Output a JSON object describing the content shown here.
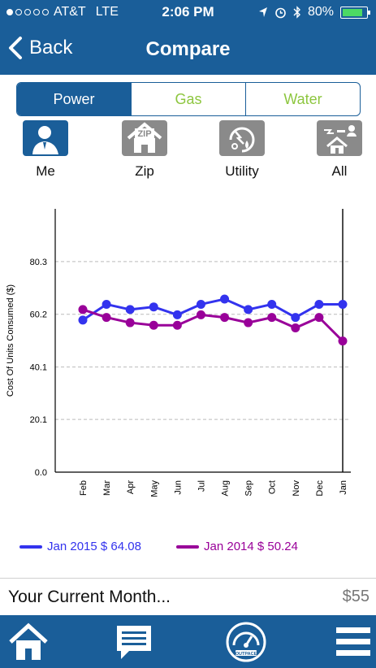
{
  "status_bar": {
    "carrier": "AT&T",
    "network": "LTE",
    "time": "2:06 PM",
    "battery": "80%",
    "signal_bars_on": 1,
    "battery_level": 0.8
  },
  "nav": {
    "back_label": "Back",
    "title": "Compare"
  },
  "segments": [
    {
      "label": "Power",
      "active": true
    },
    {
      "label": "Gas",
      "active": false
    },
    {
      "label": "Water",
      "active": false
    }
  ],
  "compare_options": [
    {
      "label": "Me",
      "icon": "person-icon",
      "selected": true
    },
    {
      "label": "Zip",
      "icon": "zip-house-icon",
      "selected": false
    },
    {
      "label": "Utility",
      "icon": "utility-icon",
      "selected": false
    },
    {
      "label": "All",
      "icon": "all-users-house-icon",
      "selected": false
    }
  ],
  "chart_data": {
    "type": "line",
    "ylabel": "Cost Of Units Consumed ($)",
    "xlabel": "",
    "categories": [
      "Feb",
      "Mar",
      "Apr",
      "May",
      "Jun",
      "Jul",
      "Aug",
      "Sep",
      "Oct",
      "Nov",
      "Dec",
      "Jan"
    ],
    "yticks": [
      "0.0",
      "20.1",
      "40.1",
      "60.2",
      "80.3"
    ],
    "ylim": [
      0,
      100.4
    ],
    "grid": true,
    "series": [
      {
        "name": "Jan 2015 $ 64.08",
        "color": "#3333ee",
        "values": [
          58,
          64,
          62,
          63,
          60,
          64,
          66,
          62,
          64,
          59,
          64,
          64
        ]
      },
      {
        "name": "Jan 2014 $ 50.24",
        "color": "#990099",
        "values": [
          62,
          59,
          57,
          56,
          56,
          60,
          59,
          57,
          59,
          55,
          59,
          50
        ]
      }
    ],
    "highlight_category": "Jan"
  },
  "current_month": {
    "label": "Your Current Month...",
    "value": "$55"
  },
  "tab_bar": [
    {
      "name": "home",
      "icon": "home-icon"
    },
    {
      "name": "news",
      "icon": "news-icon"
    },
    {
      "name": "meter",
      "icon": "meter-icon",
      "meter_text": "OUTPACE"
    },
    {
      "name": "menu",
      "icon": "menu-icon"
    }
  ],
  "colors": {
    "primary": "#1a5e99",
    "accent_green": "#8dc63f",
    "series_2015": "#3333ee",
    "series_2014": "#990099"
  }
}
